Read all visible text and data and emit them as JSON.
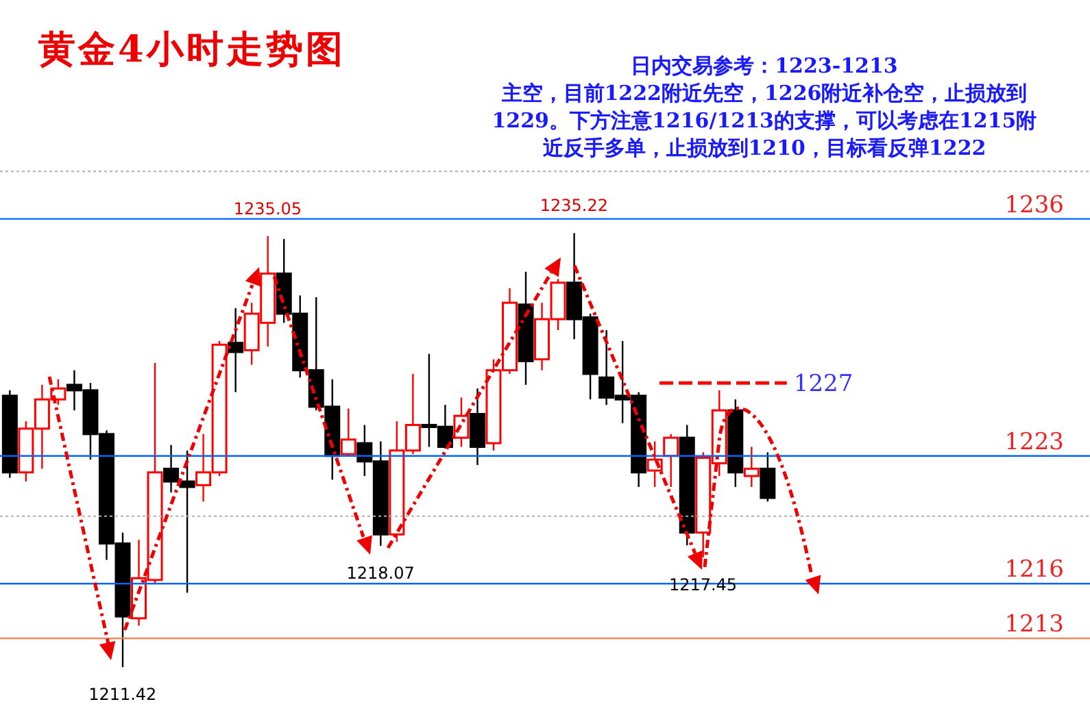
{
  "chart_data": {
    "type": "candlestick",
    "title": "黄金4小时走势图",
    "annotations": [
      "日内交易参考：1223-1213",
      "主空，目前1222附近先空，1226附近补仓空，止损放到1229。下方注意1216/1213的支撑，可以考虑在1215附近反手多单，止损放到1210，目标看反弹1222",
      {
        "text": "1211.42",
        "y": 1211.42
      },
      {
        "text": "1235.05",
        "y": 1235.05
      },
      {
        "text": "1218.07",
        "y": 1218.07
      },
      {
        "text": "1235.22",
        "y": 1235.22
      },
      {
        "text": "1217.45",
        "y": 1217.45
      }
    ],
    "categories": [
      null,
      null,
      null,
      null,
      null,
      null,
      null,
      null,
      null,
      null,
      null,
      null,
      null,
      null,
      null,
      null,
      null,
      null,
      null,
      null,
      null,
      null,
      null,
      null,
      null,
      null,
      null,
      null,
      null,
      null,
      null,
      null,
      null,
      null,
      null,
      null,
      null,
      null,
      null,
      null,
      null,
      null,
      null,
      null,
      null,
      null,
      null,
      null
    ],
    "ohlc": [
      [
        1226.3,
        1226.6,
        1221.8,
        1222.1
      ],
      [
        1222.1,
        1224.9,
        1221.6,
        1224.5
      ],
      [
        1224.5,
        1226.9,
        1222.3,
        1226.1
      ],
      [
        1226.1,
        1227.2,
        1225.8,
        1226.7
      ],
      [
        1226.9,
        1227.7,
        1225.5,
        1226.6
      ],
      [
        1226.6,
        1227.0,
        1222.8,
        1224.2
      ],
      [
        1224.2,
        1224.4,
        1217.3,
        1218.2
      ],
      [
        1218.2,
        1218.8,
        1211.42,
        1214.2
      ],
      [
        1214.1,
        1218.4,
        1213.7,
        1216.3
      ],
      [
        1216.2,
        1228.1,
        1216.0,
        1222.1
      ],
      [
        1222.3,
        1223.6,
        1221.0,
        1221.6
      ],
      [
        1221.6,
        1223.3,
        1215.5,
        1221.3
      ],
      [
        1221.4,
        1224.2,
        1220.5,
        1222.1
      ],
      [
        1222.1,
        1229.3,
        1221.9,
        1229.1
      ],
      [
        1229.2,
        1231.1,
        1226.5,
        1228.7
      ],
      [
        1228.8,
        1231.4,
        1228.0,
        1230.8
      ],
      [
        1230.3,
        1235.05,
        1229.0,
        1233.0
      ],
      [
        1233.0,
        1234.9,
        1230.3,
        1230.8
      ],
      [
        1230.8,
        1231.8,
        1227.3,
        1227.7
      ],
      [
        1227.7,
        1231.7,
        1225.5,
        1225.7
      ],
      [
        1225.7,
        1227.2,
        1221.7,
        1223.0
      ],
      [
        1223.1,
        1225.6,
        1223.0,
        1223.9
      ],
      [
        1223.7,
        1224.7,
        1221.9,
        1222.7
      ],
      [
        1222.7,
        1223.8,
        1218.07,
        1218.7
      ],
      [
        1218.7,
        1224.9,
        1218.3,
        1223.3
      ],
      [
        1223.3,
        1227.5,
        1223.1,
        1224.7
      ],
      [
        1224.7,
        1228.6,
        1223.5,
        1224.6
      ],
      [
        1224.6,
        1225.8,
        1223.4,
        1223.5
      ],
      [
        1224.0,
        1226.2,
        1223.5,
        1225.2
      ],
      [
        1225.3,
        1226.7,
        1222.5,
        1223.5
      ],
      [
        1223.7,
        1228.3,
        1223.3,
        1227.7
      ],
      [
        1227.7,
        1232.2,
        1227.5,
        1231.4
      ],
      [
        1231.3,
        1233.1,
        1226.9,
        1228.2
      ],
      [
        1228.3,
        1231.4,
        1227.7,
        1230.5
      ],
      [
        1230.5,
        1232.7,
        1229.9,
        1232.5
      ],
      [
        1232.5,
        1235.22,
        1229.4,
        1230.5
      ],
      [
        1230.6,
        1230.8,
        1226.1,
        1227.5
      ],
      [
        1227.3,
        1229.9,
        1225.8,
        1226.2
      ],
      [
        1226.3,
        1229.3,
        1224.8,
        1226.1
      ],
      [
        1226.3,
        1226.5,
        1221.3,
        1222.1
      ],
      [
        1222.2,
        1223.8,
        1221.3,
        1222.8
      ],
      [
        1223.0,
        1224.2,
        1221.3,
        1224.0
      ],
      [
        1224.0,
        1224.7,
        1218.1,
        1218.8
      ],
      [
        1218.8,
        1223.2,
        1217.45,
        1222.9
      ],
      [
        1222.6,
        1226.6,
        1221.9,
        1225.5
      ],
      [
        1225.5,
        1226.1,
        1221.3,
        1222.1
      ],
      [
        1221.9,
        1223.5,
        1221.3,
        1222.3
      ],
      [
        1222.3,
        1223.2,
        1220.5,
        1220.7
      ]
    ],
    "colors": [
      "#000000",
      "#ff0000",
      "#ff0000",
      "#ff0000",
      "#000000",
      "#000000",
      "#000000",
      "#000000",
      "#ff0000",
      "#ff0000",
      "#000000",
      "#000000",
      "#ff0000",
      "#ff0000",
      "#000000",
      "#ff0000",
      "#ff0000",
      "#000000",
      "#000000",
      "#000000",
      "#000000",
      "#ff0000",
      "#000000",
      "#000000",
      "#ff0000",
      "#ff0000",
      "#000000",
      "#000000",
      "#ff0000",
      "#000000",
      "#ff0000",
      "#ff0000",
      "#000000",
      "#ff0000",
      "#ff0000",
      "#000000",
      "#000000",
      "#000000",
      "#000000",
      "#000000",
      "#ff0000",
      "#ff0000",
      "#000000",
      "#ff0000",
      "#ff0000",
      "#000000",
      "#ff0000",
      "#000000"
    ],
    "ylim": [
      1209.4,
      1248
    ],
    "yticks": [
      {
        "value": 1219.7,
        "label": null
      },
      {
        "value": 1238.6,
        "label": null
      }
    ],
    "grid": "y",
    "tick_labels": false,
    "ref_lines": [
      {
        "axis": "y",
        "value": 1236,
        "label": "1236",
        "color": "#0066ff"
      },
      {
        "axis": "y",
        "value": 1223,
        "label": "1223",
        "color": "#0066ff"
      },
      {
        "axis": "y",
        "value": 1216,
        "label": "1216",
        "color": "#0066ff"
      },
      {
        "axis": "y",
        "value": 1213,
        "label": "1213",
        "color": "#ff7f50"
      },
      {
        "axis": "y",
        "value": 1227,
        "label": "1227",
        "color": "#ff0000",
        "line_style": "dashed"
      }
    ]
  }
}
